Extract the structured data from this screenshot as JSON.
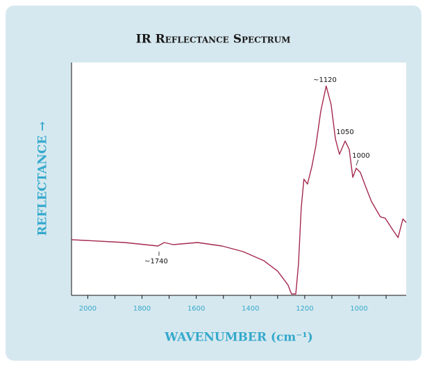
{
  "chart_data": {
    "type": "line",
    "title": "IR Reflectance Spectrum",
    "x_label": "WAVENUMBER (cm⁻¹)",
    "y_label": "REFLECTANCE →",
    "xlim": [
      2060,
      826
    ],
    "ylim": [
      0,
      100
    ],
    "xticks": [
      2000,
      1800,
      1600,
      1400,
      1200,
      1000
    ],
    "xminor_ticks": [
      1900,
      1700,
      1500,
      1300,
      1100,
      900
    ],
    "color": "#a3284c",
    "x": [
      2060,
      1864,
      1741,
      1718,
      1685,
      1595,
      1505,
      1428,
      1351,
      1300,
      1262,
      1249,
      1233,
      1223,
      1213,
      1203,
      1190,
      1174,
      1159,
      1141,
      1121,
      1103,
      1087,
      1072,
      1051,
      1036,
      1023,
      1010,
      995,
      979,
      954,
      921,
      903,
      877,
      856,
      838,
      826
    ],
    "values": [
      23.9,
      22.7,
      21.2,
      22.7,
      21.8,
      22.7,
      21.2,
      18.8,
      14.9,
      10.4,
      4.5,
      0.6,
      0.6,
      13.4,
      37.3,
      49.9,
      47.8,
      55.2,
      64.2,
      79.1,
      89.9,
      82.1,
      67.2,
      60.6,
      66.3,
      62.7,
      50.7,
      54.6,
      52.8,
      47.8,
      40.3,
      33.7,
      33.1,
      28.4,
      24.8,
      32.8,
      31.3
    ],
    "annotations": [
      "~1120",
      "1050",
      "1000",
      "~1740"
    ]
  }
}
